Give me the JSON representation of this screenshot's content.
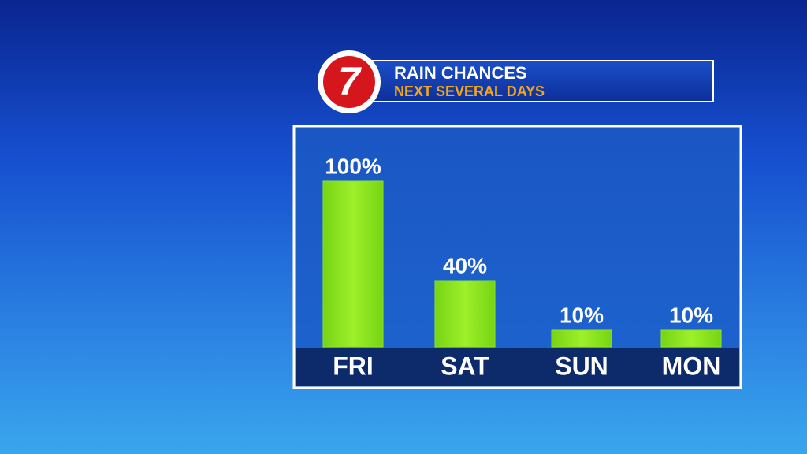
{
  "channel_logo": "7",
  "chart_data": {
    "type": "bar",
    "title": "RAIN CHANCES",
    "subtitle": "NEXT SEVERAL DAYS",
    "categories": [
      "FRI",
      "SAT",
      "SUN",
      "MON"
    ],
    "values": [
      100,
      40,
      10,
      10
    ],
    "value_labels": [
      "100%",
      "40%",
      "10%",
      "10%"
    ],
    "color": "#8be61c"
  }
}
